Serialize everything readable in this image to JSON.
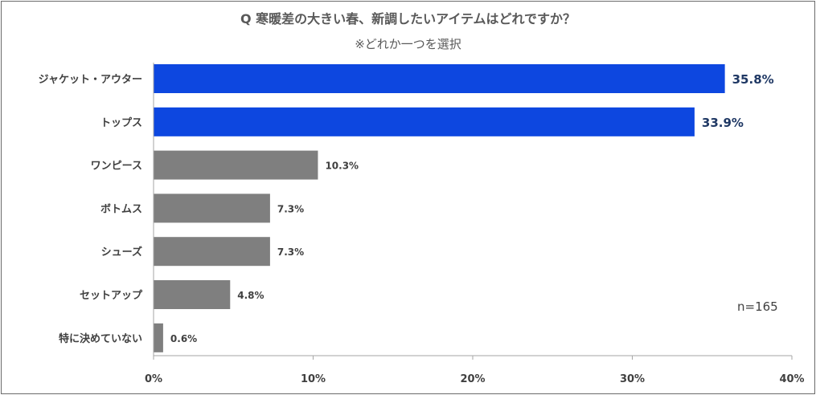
{
  "chart_data": {
    "type": "bar",
    "orientation": "horizontal",
    "title": "Q 寒暖差の大きい春、新調したいアイテムはどれですか？",
    "subtitle": "※どれか一つを選択",
    "categories": [
      "ジャケット・アウター",
      "トップス",
      "ワンピース",
      "ボトムス",
      "シューズ",
      "セットアップ",
      "特に決めていない"
    ],
    "values": [
      35.8,
      33.9,
      10.3,
      7.3,
      7.3,
      4.8,
      0.6
    ],
    "value_labels": [
      "35.8%",
      "33.9%",
      "10.3%",
      "7.3%",
      "7.3%",
      "4.8%",
      "0.6%"
    ],
    "bar_colors": [
      "#0d47e0",
      "#0d47e0",
      "#7f7f7f",
      "#7f7f7f",
      "#7f7f7f",
      "#7f7f7f",
      "#7f7f7f"
    ],
    "xlim": [
      0,
      40
    ],
    "xticks": [
      0,
      10,
      20,
      30,
      40
    ],
    "xtick_labels": [
      "0%",
      "10%",
      "20%",
      "30%",
      "40%"
    ],
    "grid": false,
    "legend": "none",
    "annotation": "n=165"
  }
}
